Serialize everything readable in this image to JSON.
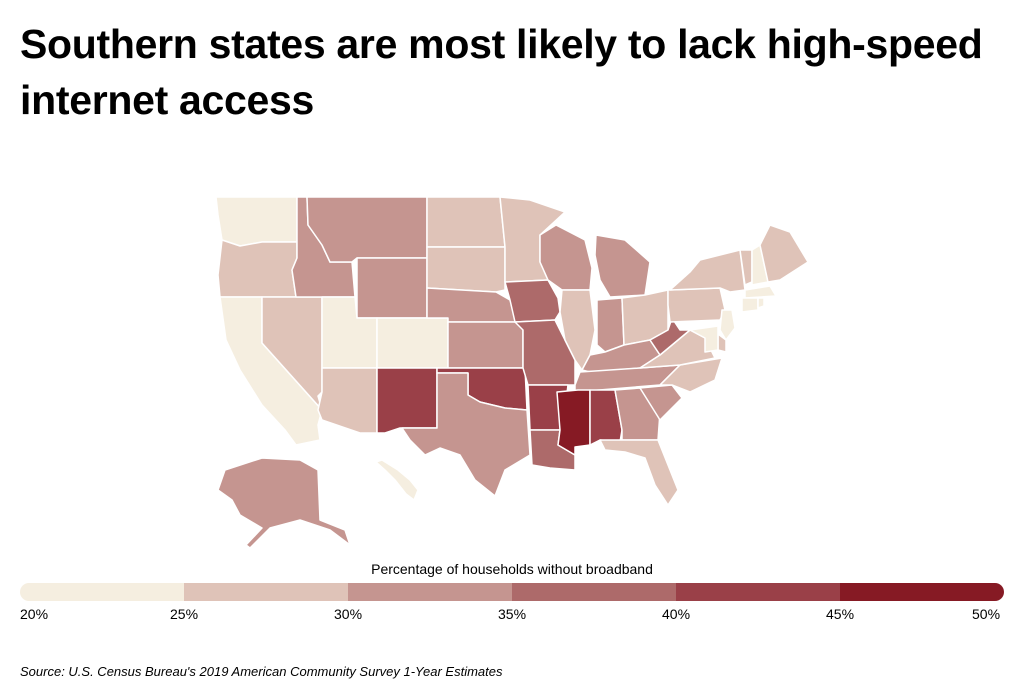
{
  "title": "Southern states are most likely to lack high-speed internet access",
  "legend": {
    "title": "Percentage of households without broadband",
    "ticks": [
      "20%",
      "25%",
      "30%",
      "35%",
      "40%",
      "45%",
      "50%"
    ],
    "colors": [
      "#f5eee0",
      "#dfc3b8",
      "#c59590",
      "#ad6a6a",
      "#9a4048",
      "#861a24"
    ]
  },
  "source": "Source:  U.S. Census Bureau's 2019 American Community Survey 1-Year Estimates",
  "map_data": {
    "value_bins": [
      "20-25%",
      "25-30%",
      "30-35%",
      "35-40%",
      "40-45%",
      "45-50%"
    ],
    "states": {
      "WA": 0,
      "OR": 1,
      "CA": 0,
      "NV": 1,
      "ID": 2,
      "MT": 2,
      "WY": 2,
      "UT": 0,
      "CO": 0,
      "AZ": 1,
      "NM": 4,
      "ND": 1,
      "SD": 1,
      "NE": 2,
      "KS": 2,
      "OK": 4,
      "TX": 2,
      "MN": 1,
      "IA": 3,
      "MO": 3,
      "AR": 4,
      "LA": 3,
      "WI": 2,
      "IL": 1,
      "MI": 2,
      "IN": 2,
      "OH": 1,
      "KY": 2,
      "TN": 2,
      "MS": 5,
      "AL": 4,
      "GA": 2,
      "FL": 1,
      "SC": 2,
      "NC": 1,
      "VA": 1,
      "WV": 3,
      "PA": 1,
      "NY": 1,
      "VT": 1,
      "NH": 0,
      "ME": 1,
      "MA": 0,
      "CT": 0,
      "RI": 0,
      "NJ": 0,
      "DE": 1,
      "MD": 0,
      "AK": 2,
      "HI": 0
    }
  }
}
